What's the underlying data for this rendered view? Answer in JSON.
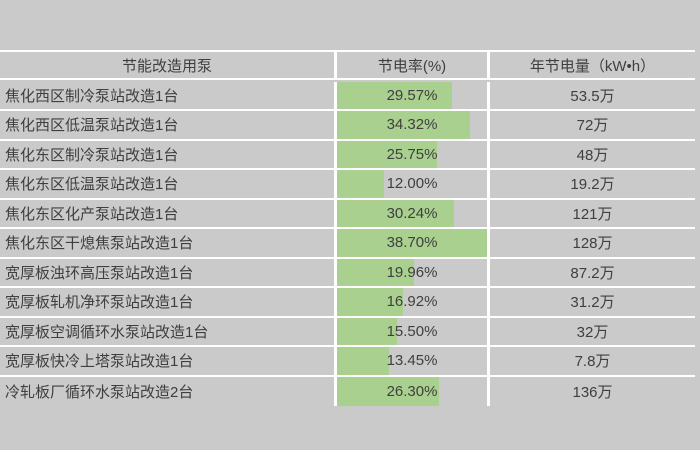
{
  "page": {
    "background_color": "#c9cac9",
    "gridline_color": "#ffffff",
    "text_color": "#3f3f3f"
  },
  "table": {
    "bar_color": "#a9d08e",
    "bar_max": 38.7,
    "columns": [
      {
        "label": "节能改造用泵"
      },
      {
        "label": "节电率(%)"
      },
      {
        "label": "年节电量（kW•h）"
      }
    ],
    "rows": [
      {
        "name": "焦化西区制冷泵站改造1台",
        "rate": "29.57%",
        "rate_value": 29.57,
        "savings": "53.5万"
      },
      {
        "name": "焦化西区低温泵站改造1台",
        "rate": "34.32%",
        "rate_value": 34.32,
        "savings": "72万"
      },
      {
        "name": "焦化东区制冷泵站改造1台",
        "rate": "25.75%",
        "rate_value": 25.75,
        "savings": "48万"
      },
      {
        "name": "焦化东区低温泵站改造1台",
        "rate": "12.00%",
        "rate_value": 12.0,
        "savings": "19.2万"
      },
      {
        "name": "焦化东区化产泵站改造1台",
        "rate": "30.24%",
        "rate_value": 30.24,
        "savings": "121万"
      },
      {
        "name": "焦化东区干熄焦泵站改造1台",
        "rate": "38.70%",
        "rate_value": 38.7,
        "savings": "128万"
      },
      {
        "name": "宽厚板浊环高压泵站改造1台",
        "rate": "19.96%",
        "rate_value": 19.96,
        "savings": "87.2万"
      },
      {
        "name": "宽厚板轧机净环泵站改造1台",
        "rate": "16.92%",
        "rate_value": 16.92,
        "savings": "31.2万"
      },
      {
        "name": "宽厚板空调循环水泵站改造1台",
        "rate": "15.50%",
        "rate_value": 15.5,
        "savings": "32万"
      },
      {
        "name": "宽厚板快冷上塔泵站改造1台",
        "rate": "13.45%",
        "rate_value": 13.45,
        "savings": "7.8万"
      },
      {
        "name": "冷轧板厂循环水泵站改造2台",
        "rate": "26.30%",
        "rate_value": 26.3,
        "savings": "136万"
      }
    ]
  },
  "chart_data": {
    "type": "table",
    "title": "",
    "categories": [
      "焦化西区制冷泵站改造1台",
      "焦化西区低温泵站改造1台",
      "焦化东区制冷泵站改造1台",
      "焦化东区低温泵站改造1台",
      "焦化东区化产泵站改造1台",
      "焦化东区干熄焦泵站改造1台",
      "宽厚板浊环高压泵站改造1台",
      "宽厚板轧机净环泵站改造1台",
      "宽厚板空调循环水泵站改造1台",
      "宽厚板快冷上塔泵站改造1台",
      "冷轧板厂循环水泵站改造2台"
    ],
    "series": [
      {
        "name": "节电率(%)",
        "values": [
          29.57,
          34.32,
          25.75,
          12.0,
          30.24,
          38.7,
          19.96,
          16.92,
          15.5,
          13.45,
          26.3
        ]
      },
      {
        "name": "年节电量（kW•h）",
        "values": [
          "53.5万",
          "72万",
          "48万",
          "19.2万",
          "121万",
          "128万",
          "87.2万",
          "31.2万",
          "32万",
          "7.8万",
          "136万"
        ]
      }
    ],
    "layout_hints": {
      "databar_column": "节电率(%)",
      "databar_scale_max": 38.7,
      "databar_color": "#a9d08e"
    }
  }
}
